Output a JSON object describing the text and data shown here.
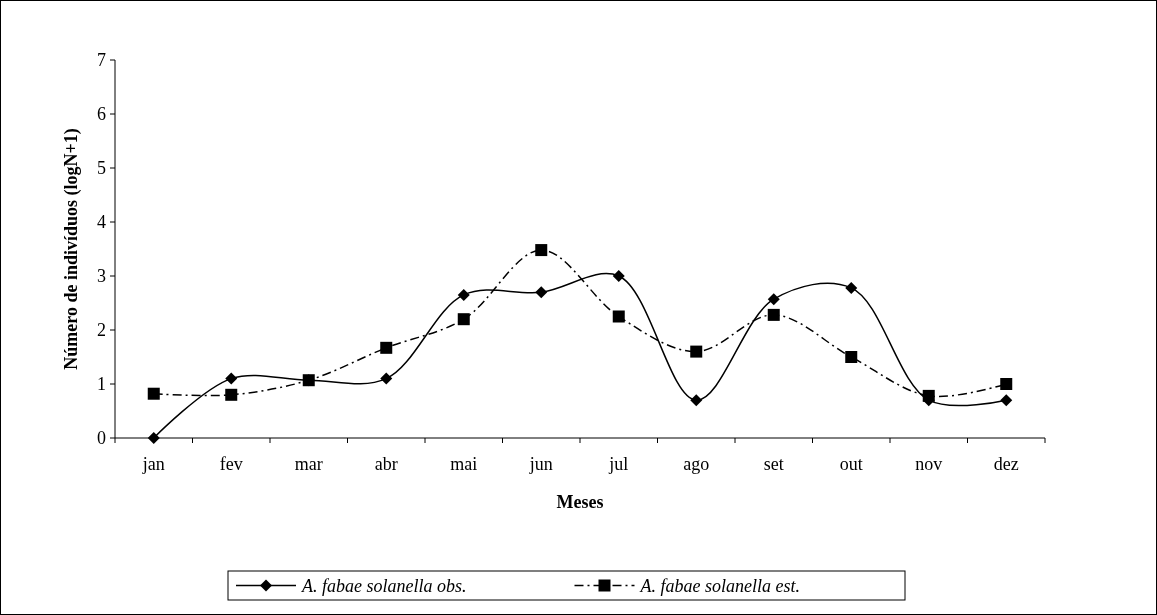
{
  "chart_data": {
    "type": "line",
    "xlabel": "Meses",
    "ylabel": "Número de indivíduos (logN+1)",
    "categories": [
      "jan",
      "fev",
      "mar",
      "abr",
      "mai",
      "jun",
      "jul",
      "ago",
      "set",
      "out",
      "nov",
      "dez"
    ],
    "series": [
      {
        "name": "A. fabae solanella obs.",
        "color": "#000000",
        "marker": "diamond",
        "line_style": "solid",
        "values": [
          0,
          1.1,
          1.07,
          1.1,
          2.65,
          2.7,
          3.0,
          0.7,
          2.57,
          2.78,
          0.7,
          0.7
        ]
      },
      {
        "name": "A. fabae solanella est.",
        "color": "#000000",
        "marker": "square",
        "line_style": "dashed",
        "values": [
          0.82,
          0.8,
          1.07,
          1.67,
          2.2,
          3.48,
          2.25,
          1.6,
          2.28,
          1.5,
          0.78,
          1.0
        ]
      }
    ],
    "ylim": [
      0,
      7
    ],
    "yticks": [
      0,
      1,
      2,
      3,
      4,
      5,
      6,
      7
    ],
    "grid": false,
    "legend": "bottom"
  }
}
